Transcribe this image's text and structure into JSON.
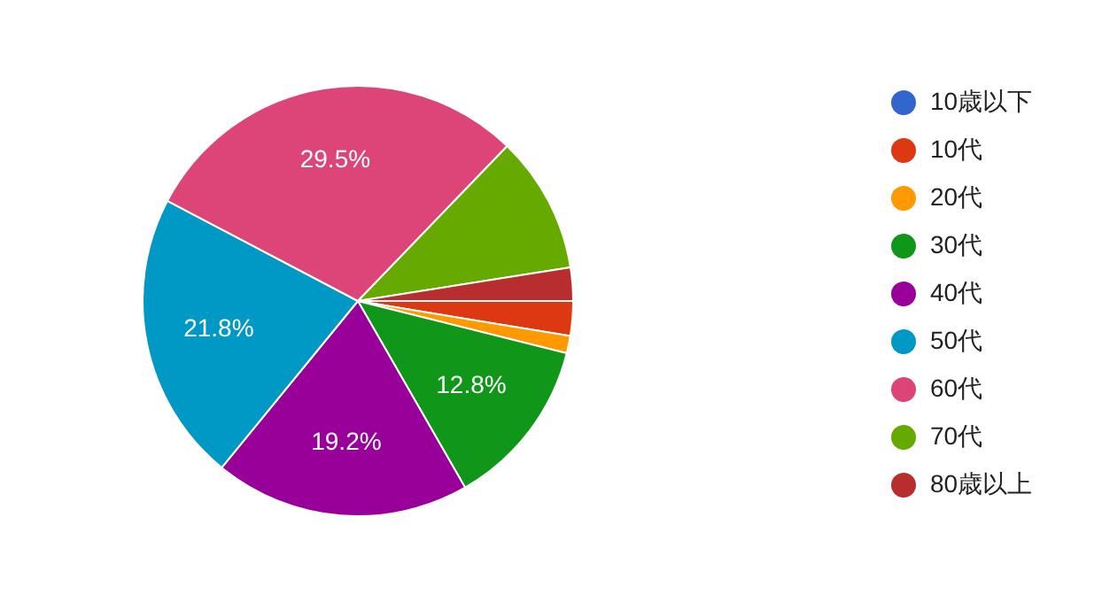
{
  "chart_data": {
    "type": "pie",
    "categories": [
      "10歳以下",
      "10代",
      "20代",
      "30代",
      "40代",
      "50代",
      "60代",
      "70代",
      "80歳以上"
    ],
    "values": [
      0,
      2.6,
      1.3,
      12.8,
      19.2,
      21.8,
      29.5,
      10.3,
      2.5
    ],
    "colors": [
      "#3366cc",
      "#dc3912",
      "#ff9900",
      "#109618",
      "#990099",
      "#0099c6",
      "#dd4477",
      "#66aa00",
      "#b82e2e"
    ],
    "value_labels": [
      null,
      null,
      null,
      "12.8%",
      "19.2%",
      "21.8%",
      "29.5%",
      null,
      null
    ],
    "legend": "right"
  }
}
